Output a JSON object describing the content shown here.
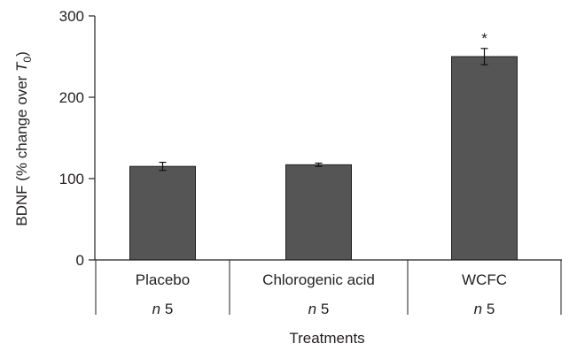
{
  "chart_data": {
    "type": "bar",
    "title": "",
    "ylabel": "BDNF (% change over T0)",
    "xlabel": "Treatments",
    "ylim": [
      0,
      300
    ],
    "yticks": [
      0,
      100,
      200,
      300
    ],
    "categories": [
      "Placebo",
      "Chlorogenic acid",
      "WCFC"
    ],
    "values": [
      115,
      117,
      250
    ],
    "errors": [
      5,
      2,
      10
    ],
    "n_labels": [
      "n 5",
      "n 5",
      "n 5"
    ],
    "annotations": [
      "",
      "",
      "*"
    ],
    "bar_color": "#555555",
    "grid": false
  }
}
